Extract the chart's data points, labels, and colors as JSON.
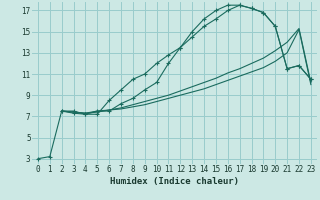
{
  "xlabel": "Humidex (Indice chaleur)",
  "bg_color": "#cce8e4",
  "grid_color": "#99cccc",
  "line_color": "#1a6b5e",
  "xlim": [
    -0.5,
    23.5
  ],
  "ylim": [
    2.5,
    17.8
  ],
  "xticks": [
    0,
    1,
    2,
    3,
    4,
    5,
    6,
    7,
    8,
    9,
    10,
    11,
    12,
    13,
    14,
    15,
    16,
    17,
    18,
    19,
    20,
    21,
    22,
    23
  ],
  "yticks": [
    3,
    5,
    7,
    9,
    11,
    13,
    15,
    17
  ],
  "curve1_x": [
    0,
    1,
    2,
    3,
    4,
    5,
    6,
    7,
    8,
    9,
    10,
    11,
    12,
    13,
    14,
    15,
    16,
    17,
    18,
    19,
    20,
    21,
    22,
    23
  ],
  "curve1_y": [
    3,
    3.2,
    7.5,
    7.5,
    7.2,
    7.5,
    7.5,
    8.2,
    8.7,
    9.5,
    10.2,
    12.0,
    13.5,
    15.0,
    16.2,
    17.0,
    17.5,
    17.5,
    17.2,
    16.8,
    15.5,
    11.5,
    11.8,
    10.5
  ],
  "curve2_x": [
    2,
    3,
    4,
    5,
    6,
    7,
    8,
    9,
    10,
    11,
    12,
    13,
    14,
    15,
    16,
    17,
    18,
    19,
    20,
    21,
    22,
    23
  ],
  "curve2_y": [
    7.5,
    7.3,
    7.2,
    7.2,
    8.5,
    9.5,
    10.5,
    11.0,
    12.0,
    12.8,
    13.5,
    14.5,
    15.5,
    16.2,
    17.0,
    17.5,
    17.2,
    16.8,
    15.5,
    11.5,
    11.8,
    10.5
  ],
  "curve3_x": [
    2,
    3,
    4,
    5,
    6,
    7,
    8,
    9,
    10,
    11,
    12,
    13,
    14,
    15,
    16,
    17,
    18,
    19,
    20,
    21,
    22,
    23
  ],
  "curve3_y": [
    7.5,
    7.4,
    7.3,
    7.5,
    7.6,
    7.8,
    8.1,
    8.4,
    8.7,
    9.0,
    9.4,
    9.8,
    10.2,
    10.6,
    11.1,
    11.5,
    12.0,
    12.5,
    13.2,
    14.0,
    15.3,
    10.2
  ],
  "curve4_x": [
    2,
    3,
    4,
    5,
    6,
    7,
    8,
    9,
    10,
    11,
    12,
    13,
    14,
    15,
    16,
    17,
    18,
    19,
    20,
    21,
    22,
    23
  ],
  "curve4_y": [
    7.5,
    7.4,
    7.3,
    7.4,
    7.6,
    7.7,
    7.9,
    8.1,
    8.4,
    8.7,
    9.0,
    9.3,
    9.6,
    10.0,
    10.4,
    10.8,
    11.2,
    11.6,
    12.2,
    13.0,
    15.2,
    10.0
  ]
}
